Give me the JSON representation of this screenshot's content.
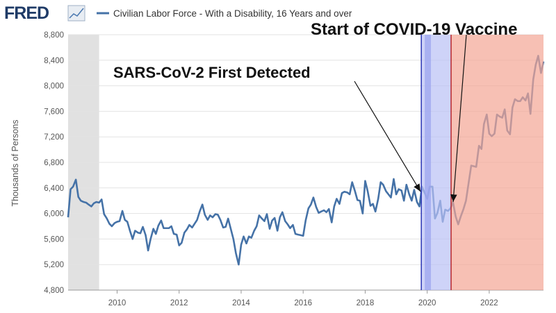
{
  "chart_data": {
    "type": "line",
    "logo": "FRED",
    "ylabel": "Thousands of Persons",
    "xlim": [
      2008.42,
      2023.75
    ],
    "xticks": [
      2010,
      2012,
      2014,
      2016,
      2018,
      2020,
      2022
    ],
    "ylim": [
      4800,
      8800
    ],
    "yticks": [
      {
        "value": 4800,
        "label": "4,800"
      },
      {
        "value": 5200,
        "label": "5,200"
      },
      {
        "value": 5600,
        "label": "5,600"
      },
      {
        "value": 6000,
        "label": "6,000"
      },
      {
        "value": 6400,
        "label": "6,400"
      },
      {
        "value": 6800,
        "label": "6,800"
      },
      {
        "value": 7200,
        "label": "7,200"
      },
      {
        "value": 7600,
        "label": "7,600"
      },
      {
        "value": 8000,
        "label": "8,000"
      },
      {
        "value": 8400,
        "label": "8,400"
      },
      {
        "value": 8800,
        "label": "8,800"
      }
    ],
    "grid": true,
    "shaded_regions": [
      {
        "start": 2008.42,
        "end": 2009.42,
        "color": "#e1e1e1"
      },
      {
        "start": 2019.81,
        "end": 2020.77,
        "color": "#b9c0f5"
      },
      {
        "start": 2019.92,
        "end": 2020.12,
        "color": "#9aa3ee"
      },
      {
        "start": 2020.77,
        "end": 2023.75,
        "color": "#f4a594"
      }
    ],
    "vertical_lines": [
      {
        "x": 2019.81,
        "color": "#2a35b5"
      },
      {
        "x": 2020.77,
        "color": "#b8252a"
      }
    ],
    "annotations": [
      {
        "text": "SARS-CoV-2 First Detected"
      },
      {
        "text": "Start of COVID-19 Vaccine"
      }
    ],
    "x": [
      2008.42,
      2008.5,
      2008.58,
      2008.67,
      2008.75,
      2008.83,
      2008.92,
      2009.0,
      2009.08,
      2009.17,
      2009.25,
      2009.33,
      2009.42,
      2009.5,
      2009.58,
      2009.67,
      2009.75,
      2009.83,
      2009.92,
      2010.0,
      2010.08,
      2010.17,
      2010.25,
      2010.33,
      2010.42,
      2010.5,
      2010.58,
      2010.67,
      2010.75,
      2010.83,
      2010.92,
      2011.0,
      2011.08,
      2011.17,
      2011.25,
      2011.33,
      2011.42,
      2011.5,
      2011.58,
      2011.67,
      2011.75,
      2011.83,
      2011.92,
      2012.0,
      2012.08,
      2012.17,
      2012.25,
      2012.33,
      2012.42,
      2012.5,
      2012.58,
      2012.67,
      2012.75,
      2012.83,
      2012.92,
      2013.0,
      2013.08,
      2013.17,
      2013.25,
      2013.33,
      2013.42,
      2013.5,
      2013.58,
      2013.67,
      2013.75,
      2013.83,
      2013.92,
      2014.0,
      2014.08,
      2014.17,
      2014.25,
      2014.33,
      2014.42,
      2014.5,
      2014.58,
      2014.67,
      2014.75,
      2014.83,
      2014.92,
      2015.0,
      2015.08,
      2015.17,
      2015.25,
      2015.33,
      2015.42,
      2015.5,
      2015.58,
      2015.67,
      2015.75,
      2015.83,
      2015.92,
      2016.0,
      2016.08,
      2016.17,
      2016.25,
      2016.33,
      2016.42,
      2016.5,
      2016.58,
      2016.67,
      2016.75,
      2016.83,
      2016.92,
      2017.0,
      2017.08,
      2017.17,
      2017.25,
      2017.33,
      2017.42,
      2017.5,
      2017.58,
      2017.67,
      2017.75,
      2017.83,
      2017.92,
      2018.0,
      2018.08,
      2018.17,
      2018.25,
      2018.33,
      2018.42,
      2018.5,
      2018.58,
      2018.67,
      2018.75,
      2018.83,
      2018.92,
      2019.0,
      2019.08,
      2019.17,
      2019.25,
      2019.33,
      2019.42,
      2019.5,
      2019.58,
      2019.67,
      2019.75,
      2019.83,
      2019.92,
      2020.0,
      2020.08,
      2020.17,
      2020.25,
      2020.33,
      2020.42,
      2020.5,
      2020.58,
      2020.67,
      2020.75,
      2020.83,
      2020.92,
      2021.0,
      2021.08,
      2021.17,
      2021.25,
      2021.33,
      2021.42,
      2021.5,
      2021.58,
      2021.67,
      2021.75,
      2021.83,
      2021.92,
      2022.0,
      2022.08,
      2022.17,
      2022.25,
      2022.33,
      2022.42,
      2022.5,
      2022.58,
      2022.67,
      2022.75,
      2022.83,
      2022.92,
      2023.0,
      2023.08,
      2023.17,
      2023.25,
      2023.33,
      2023.42,
      2023.5,
      2023.58,
      2023.67,
      2023.75
    ],
    "series": [
      {
        "name": "Civilian Labor Force - With a Disability, 16 Years and over",
        "color": "#4572a7",
        "values": [
          5940,
          6380,
          6420,
          6530,
          6260,
          6200,
          6180,
          6170,
          6140,
          6110,
          6160,
          6180,
          6170,
          6220,
          5990,
          5920,
          5840,
          5800,
          5850,
          5870,
          5880,
          6040,
          5900,
          5870,
          5720,
          5600,
          5730,
          5700,
          5690,
          5790,
          5660,
          5420,
          5600,
          5760,
          5680,
          5810,
          5890,
          5770,
          5770,
          5770,
          5800,
          5680,
          5670,
          5500,
          5540,
          5700,
          5750,
          5820,
          5780,
          5840,
          5900,
          6040,
          6140,
          5980,
          5900,
          5970,
          5940,
          5990,
          5980,
          5900,
          5780,
          5790,
          5920,
          5750,
          5600,
          5380,
          5200,
          5510,
          5640,
          5530,
          5640,
          5620,
          5730,
          5800,
          5970,
          5920,
          5880,
          5990,
          5760,
          5890,
          5930,
          5730,
          5940,
          6020,
          5880,
          5830,
          5770,
          5820,
          5680,
          5670,
          5660,
          5650,
          5890,
          6080,
          6140,
          6250,
          6100,
          6010,
          6030,
          6050,
          6020,
          6070,
          5860,
          6110,
          6230,
          6150,
          6320,
          6340,
          6330,
          6300,
          6490,
          6350,
          6210,
          6200,
          6000,
          6510,
          6350,
          6120,
          6150,
          6030,
          6230,
          6490,
          6450,
          6350,
          6300,
          6250,
          6540,
          6300,
          6380,
          6360,
          6200,
          6450,
          6300,
          6200,
          6370,
          6180,
          6110,
          6420,
          6320,
          6230,
          6420,
          6420,
          5920,
          6010,
          6200,
          5870,
          6060,
          6040,
          6080,
          6180,
          5950,
          5830,
          5950,
          6070,
          6200,
          6460,
          6750,
          6740,
          6730,
          7060,
          7010,
          7400,
          7550,
          7250,
          7210,
          7250,
          7550,
          7520,
          7500,
          7630,
          7300,
          7240,
          7660,
          7790,
          7760,
          7760,
          7820,
          7770,
          7880,
          7560,
          8100,
          8330,
          8470,
          8200,
          8380
        ]
      }
    ]
  }
}
